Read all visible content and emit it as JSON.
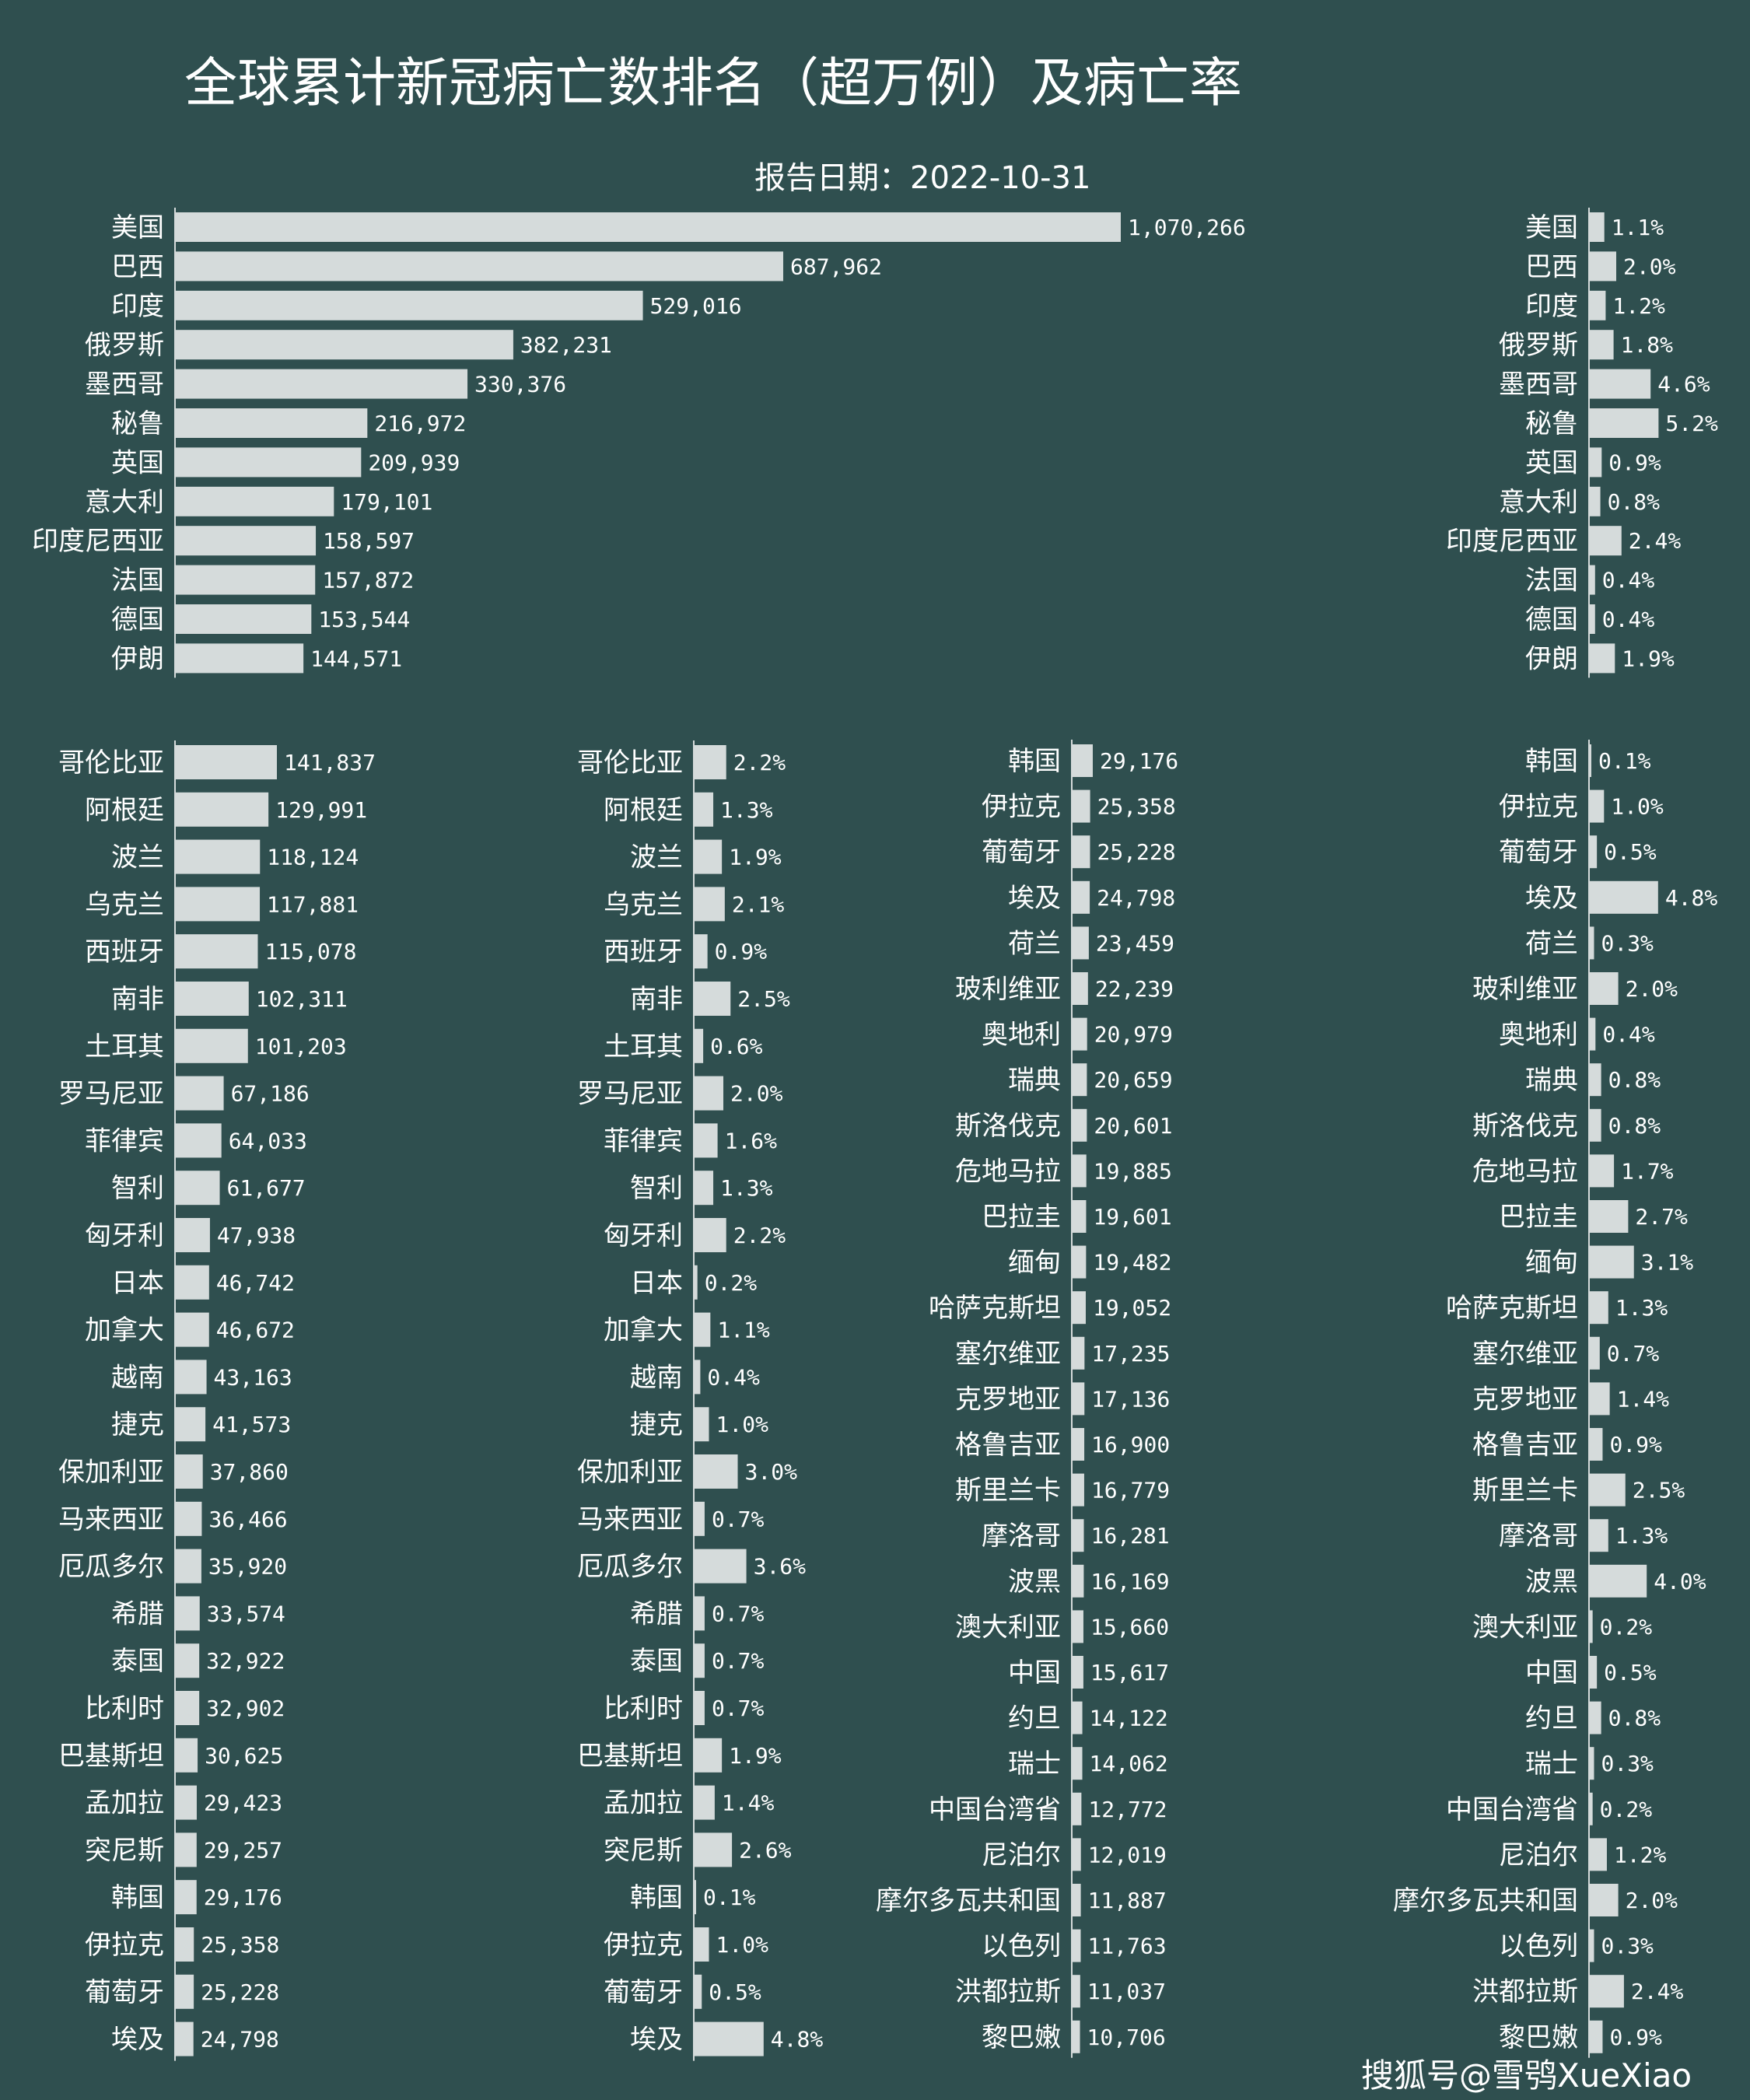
{
  "title": "全球累计新冠病亡数排名（超万例）及病亡率",
  "subtitle": "报告日期：2022-10-31",
  "watermark": "搜狐号@雪鸮XueXiao",
  "colors": {
    "background": "#2f4f4f",
    "bar": "#d5dbdb",
    "text": "#ffffff"
  },
  "chart_data": [
    {
      "type": "bar",
      "orientation": "horizontal",
      "panel": "top-deaths",
      "categories": [
        "美国",
        "巴西",
        "印度",
        "俄罗斯",
        "墨西哥",
        "秘鲁",
        "英国",
        "意大利",
        "印度尼西亚",
        "法国",
        "德国",
        "伊朗"
      ],
      "values": [
        1070266,
        687962,
        529016,
        382231,
        330376,
        216972,
        209939,
        179101,
        158597,
        157872,
        153544,
        144571
      ],
      "labels": [
        "1,070,266",
        "687,962",
        "529,016",
        "382,231",
        "330,376",
        "216,972",
        "209,939",
        "179,101",
        "158,597",
        "157,872",
        "153,544",
        "144,571"
      ]
    },
    {
      "type": "bar",
      "orientation": "horizontal",
      "panel": "top-rate",
      "categories": [
        "美国",
        "巴西",
        "印度",
        "俄罗斯",
        "墨西哥",
        "秘鲁",
        "英国",
        "意大利",
        "印度尼西亚",
        "法国",
        "德国",
        "伊朗"
      ],
      "values": [
        1.1,
        2.0,
        1.2,
        1.8,
        4.6,
        5.2,
        0.9,
        0.8,
        2.4,
        0.4,
        0.4,
        1.9
      ],
      "labels": [
        "1.1%",
        "2.0%",
        "1.2%",
        "1.8%",
        "4.6%",
        "5.2%",
        "0.9%",
        "0.8%",
        "2.4%",
        "0.4%",
        "0.4%",
        "1.9%"
      ]
    },
    {
      "type": "bar",
      "orientation": "horizontal",
      "panel": "middle-left-deaths",
      "categories": [
        "哥伦比亚",
        "阿根廷",
        "波兰",
        "乌克兰",
        "西班牙",
        "南非",
        "土耳其",
        "罗马尼亚",
        "菲律宾",
        "智利",
        "匈牙利",
        "日本",
        "加拿大",
        "越南",
        "捷克",
        "保加利亚",
        "马来西亚",
        "厄瓜多尔",
        "希腊",
        "泰国",
        "比利时",
        "巴基斯坦",
        "孟加拉",
        "突尼斯",
        "韩国",
        "伊拉克",
        "葡萄牙",
        "埃及"
      ],
      "values": [
        141837,
        129991,
        118124,
        117881,
        115078,
        102311,
        101203,
        67186,
        64033,
        61677,
        47938,
        46742,
        46672,
        43163,
        41573,
        37860,
        36466,
        35920,
        33574,
        32922,
        32902,
        30625,
        29423,
        29257,
        29176,
        25358,
        25228,
        24798
      ],
      "labels": [
        "141,837",
        "129,991",
        "118,124",
        "117,881",
        "115,078",
        "102,311",
        "101,203",
        "67,186",
        "64,033",
        "61,677",
        "47,938",
        "46,742",
        "46,672",
        "43,163",
        "41,573",
        "37,860",
        "36,466",
        "35,920",
        "33,574",
        "32,922",
        "32,902",
        "30,625",
        "29,423",
        "29,257",
        "29,176",
        "25,358",
        "25,228",
        "24,798"
      ]
    },
    {
      "type": "bar",
      "orientation": "horizontal",
      "panel": "middle-left-rate",
      "categories": [
        "哥伦比亚",
        "阿根廷",
        "波兰",
        "乌克兰",
        "西班牙",
        "南非",
        "土耳其",
        "罗马尼亚",
        "菲律宾",
        "智利",
        "匈牙利",
        "日本",
        "加拿大",
        "越南",
        "捷克",
        "保加利亚",
        "马来西亚",
        "厄瓜多尔",
        "希腊",
        "泰国",
        "比利时",
        "巴基斯坦",
        "孟加拉",
        "突尼斯",
        "韩国",
        "伊拉克",
        "葡萄牙",
        "埃及"
      ],
      "values": [
        2.2,
        1.3,
        1.9,
        2.1,
        0.9,
        2.5,
        0.6,
        2.0,
        1.6,
        1.3,
        2.2,
        0.2,
        1.1,
        0.4,
        1.0,
        3.0,
        0.7,
        3.6,
        0.7,
        0.7,
        0.7,
        1.9,
        1.4,
        2.6,
        0.1,
        1.0,
        0.5,
        4.8
      ],
      "labels": [
        "2.2%",
        "1.3%",
        "1.9%",
        "2.1%",
        "0.9%",
        "2.5%",
        "0.6%",
        "2.0%",
        "1.6%",
        "1.3%",
        "2.2%",
        "0.2%",
        "1.1%",
        "0.4%",
        "1.0%",
        "3.0%",
        "0.7%",
        "3.6%",
        "0.7%",
        "0.7%",
        "0.7%",
        "1.9%",
        "1.4%",
        "2.6%",
        "0.1%",
        "1.0%",
        "0.5%",
        "4.8%"
      ]
    },
    {
      "type": "bar",
      "orientation": "horizontal",
      "panel": "middle-right-deaths",
      "categories": [
        "韩国",
        "伊拉克",
        "葡萄牙",
        "埃及",
        "荷兰",
        "玻利维亚",
        "奥地利",
        "瑞典",
        "斯洛伐克",
        "危地马拉",
        "巴拉圭",
        "缅甸",
        "哈萨克斯坦",
        "塞尔维亚",
        "克罗地亚",
        "格鲁吉亚",
        "斯里兰卡",
        "摩洛哥",
        "波黑",
        "澳大利亚",
        "中国",
        "约旦",
        "瑞士",
        "中国台湾省",
        "尼泊尔",
        "摩尔多瓦共和国",
        "以色列",
        "洪都拉斯",
        "黎巴嫩"
      ],
      "values": [
        29176,
        25358,
        25228,
        24798,
        23459,
        22239,
        20979,
        20659,
        20601,
        19885,
        19601,
        19482,
        19052,
        17235,
        17136,
        16900,
        16779,
        16281,
        16169,
        15660,
        15617,
        14122,
        14062,
        12772,
        12019,
        11887,
        11763,
        11037,
        10706
      ],
      "labels": [
        "29,176",
        "25,358",
        "25,228",
        "24,798",
        "23,459",
        "22,239",
        "20,979",
        "20,659",
        "20,601",
        "19,885",
        "19,601",
        "19,482",
        "19,052",
        "17,235",
        "17,136",
        "16,900",
        "16,779",
        "16,281",
        "16,169",
        "15,660",
        "15,617",
        "14,122",
        "14,062",
        "12,772",
        "12,019",
        "11,887",
        "11,763",
        "11,037",
        "10,706"
      ]
    },
    {
      "type": "bar",
      "orientation": "horizontal",
      "panel": "middle-right-rate",
      "categories": [
        "韩国",
        "伊拉克",
        "葡萄牙",
        "埃及",
        "荷兰",
        "玻利维亚",
        "奥地利",
        "瑞典",
        "斯洛伐克",
        "危地马拉",
        "巴拉圭",
        "缅甸",
        "哈萨克斯坦",
        "塞尔维亚",
        "克罗地亚",
        "格鲁吉亚",
        "斯里兰卡",
        "摩洛哥",
        "波黑",
        "澳大利亚",
        "中国",
        "约旦",
        "瑞士",
        "中国台湾省",
        "尼泊尔",
        "摩尔多瓦共和国",
        "以色列",
        "洪都拉斯",
        "黎巴嫩"
      ],
      "values": [
        0.1,
        1.0,
        0.5,
        4.8,
        0.3,
        2.0,
        0.4,
        0.8,
        0.8,
        1.7,
        2.7,
        3.1,
        1.3,
        0.7,
        1.4,
        0.9,
        2.5,
        1.3,
        4.0,
        0.2,
        0.5,
        0.8,
        0.3,
        0.2,
        1.2,
        2.0,
        0.3,
        2.4,
        0.9
      ],
      "labels": [
        "0.1%",
        "1.0%",
        "0.5%",
        "4.8%",
        "0.3%",
        "2.0%",
        "0.4%",
        "0.8%",
        "0.8%",
        "1.7%",
        "2.7%",
        "3.1%",
        "1.3%",
        "0.7%",
        "1.4%",
        "0.9%",
        "2.5%",
        "1.3%",
        "4.0%",
        "0.2%",
        "0.5%",
        "0.8%",
        "0.3%",
        "0.2%",
        "1.2%",
        "2.0%",
        "0.3%",
        "2.4%",
        "0.9%"
      ]
    }
  ]
}
